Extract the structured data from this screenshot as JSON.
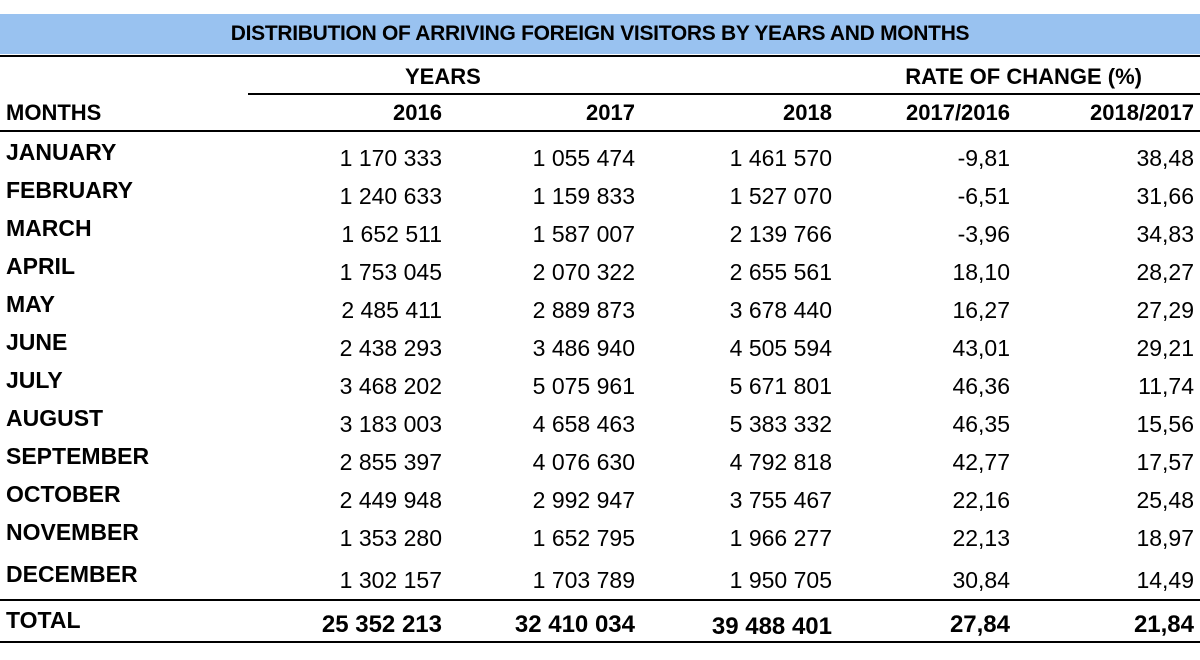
{
  "title": "DISTRIBUTION OF ARRIVING FOREIGN VISITORS BY YEARS AND MONTHS",
  "header": {
    "group_years": "YEARS",
    "group_rate": "RATE OF CHANGE (%)",
    "months": "MONTHS",
    "col_2016": "2016",
    "col_2017": "2017",
    "col_2018": "2018",
    "col_2017_2016": "2017/2016",
    "col_2018_2017": "2018/2017"
  },
  "rows": [
    {
      "month": "JANUARY",
      "y2016": "1 170 333",
      "y2017": "1 055 474",
      "y2018": "1 461 570",
      "r1": "-9,81",
      "r2": "38,48"
    },
    {
      "month": "FEBRUARY",
      "y2016": "1 240 633",
      "y2017": "1 159 833",
      "y2018": "1 527 070",
      "r1": "-6,51",
      "r2": "31,66"
    },
    {
      "month": "MARCH",
      "y2016": "1 652 511",
      "y2017": "1 587 007",
      "y2018": "2 139 766",
      "r1": "-3,96",
      "r2": "34,83"
    },
    {
      "month": "APRIL",
      "y2016": "1 753 045",
      "y2017": "2 070 322",
      "y2018": "2 655 561",
      "r1": "18,10",
      "r2": "28,27"
    },
    {
      "month": "MAY",
      "y2016": "2 485 411",
      "y2017": "2 889 873",
      "y2018": "3 678 440",
      "r1": "16,27",
      "r2": "27,29"
    },
    {
      "month": "JUNE",
      "y2016": "2 438 293",
      "y2017": "3 486 940",
      "y2018": "4 505 594",
      "r1": "43,01",
      "r2": "29,21"
    },
    {
      "month": "JULY",
      "y2016": "3 468 202",
      "y2017": "5 075 961",
      "y2018": "5 671 801",
      "r1": "46,36",
      "r2": "11,74"
    },
    {
      "month": "AUGUST",
      "y2016": "3 183 003",
      "y2017": "4 658 463",
      "y2018": "5 383 332",
      "r1": "46,35",
      "r2": "15,56"
    },
    {
      "month": "SEPTEMBER",
      "y2016": "2 855 397",
      "y2017": "4 076 630",
      "y2018": "4 792 818",
      "r1": "42,77",
      "r2": "17,57"
    },
    {
      "month": "OCTOBER",
      "y2016": "2 449 948",
      "y2017": "2 992 947",
      "y2018": "3 755 467",
      "r1": "22,16",
      "r2": "25,48"
    },
    {
      "month": "NOVEMBER",
      "y2016": "1 353 280",
      "y2017": "1 652 795",
      "y2018": "1 966 277",
      "r1": "22,13",
      "r2": "18,97"
    },
    {
      "month": "DECEMBER",
      "y2016": "1 302 157",
      "y2017": "1 703 789",
      "y2018": "1 950 705",
      "r1": "30,84",
      "r2": "14,49"
    }
  ],
  "total": {
    "label": "TOTAL",
    "y2016": "25 352 213",
    "y2017": "32 410 034",
    "y2018": "39 488 401",
    "r1": "27,84",
    "r2": "21,84"
  },
  "colors": {
    "title_background": "#99c2f0"
  }
}
